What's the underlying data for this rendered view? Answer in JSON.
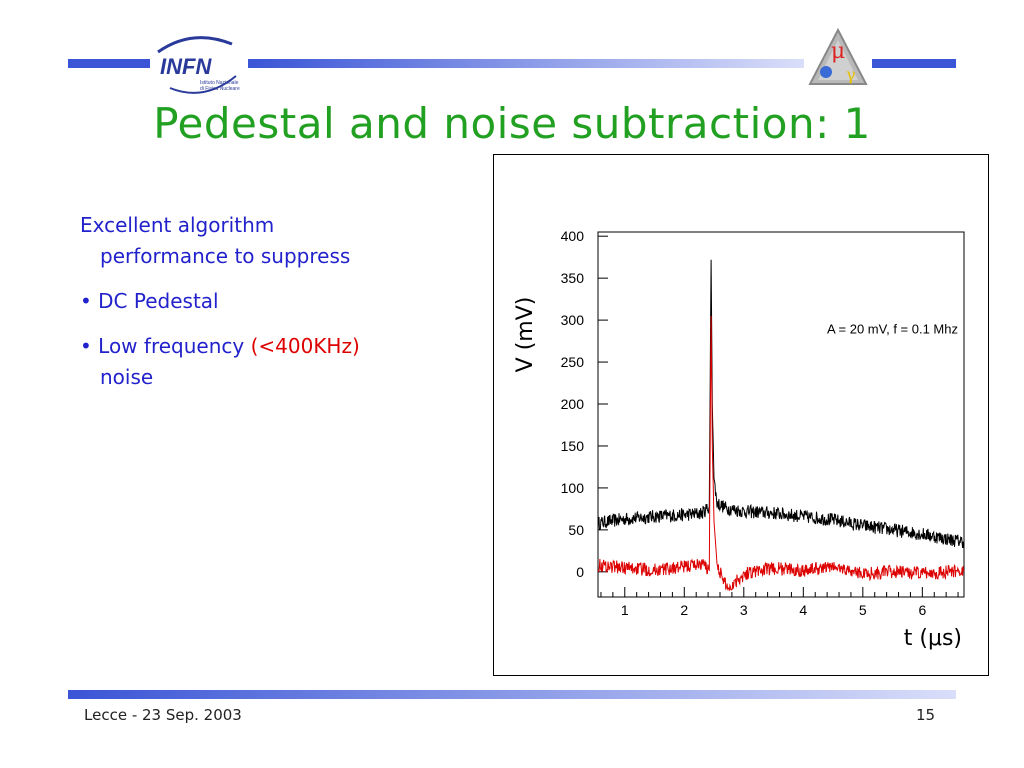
{
  "logo_infn": {
    "text": "INFN",
    "subtitle1": "Istituto Nazionale",
    "subtitle2": "di Fisica Nucleare"
  },
  "logo_mu": {
    "symbol": "μ"
  },
  "title": "Pedestal and noise subtraction: 1",
  "body": {
    "intro_line1": "Excellent algorithm",
    "intro_line2": "performance to suppress",
    "bullet1": "• DC Pedestal",
    "bullet2_a": "• Low frequency ",
    "bullet2_b": "(<400KHz)",
    "bullet2_c": "noise"
  },
  "footer": {
    "left": "Lecce - 23 Sep.  2003",
    "right": "15"
  },
  "colors": {
    "accent_blue": "#3a55d6",
    "title_green": "#21a021",
    "text_blue": "#2222cc",
    "highlight_red": "#dd0000"
  },
  "chart_data": {
    "type": "line",
    "xlabel": "t (μs)",
    "ylabel": "V (mV)",
    "annotation": "A = 20 mV, f = 0.1 Mhz",
    "xlim": [
      0.55,
      6.7
    ],
    "ylim": [
      -30,
      405
    ],
    "xticks": [
      1,
      2,
      3,
      4,
      5,
      6
    ],
    "yticks": [
      0,
      50,
      100,
      150,
      200,
      250,
      300,
      350,
      400
    ],
    "series": [
      {
        "color": "#000000",
        "x": [
          0.55,
          1.0,
          1.5,
          2.0,
          2.3,
          2.42,
          2.45,
          2.47,
          2.5,
          2.55,
          2.7,
          3.0,
          3.5,
          4.0,
          4.5,
          5.0,
          5.5,
          6.0,
          6.5,
          6.7
        ],
        "y": [
          58,
          63,
          66,
          68,
          70,
          78,
          372,
          200,
          110,
          82,
          76,
          72,
          70,
          66,
          62,
          55,
          50,
          45,
          38,
          36
        ]
      },
      {
        "color": "#dd0000",
        "x": [
          0.55,
          1.0,
          1.5,
          2.0,
          2.3,
          2.42,
          2.45,
          2.47,
          2.5,
          2.55,
          2.65,
          2.75,
          2.9,
          3.1,
          3.5,
          4.0,
          4.5,
          5.0,
          5.5,
          6.0,
          6.5,
          6.7
        ],
        "y": [
          8,
          5,
          2,
          6,
          10,
          2,
          305,
          150,
          60,
          10,
          -10,
          -20,
          -8,
          0,
          4,
          2,
          6,
          -2,
          0,
          -2,
          0,
          2
        ]
      }
    ]
  }
}
